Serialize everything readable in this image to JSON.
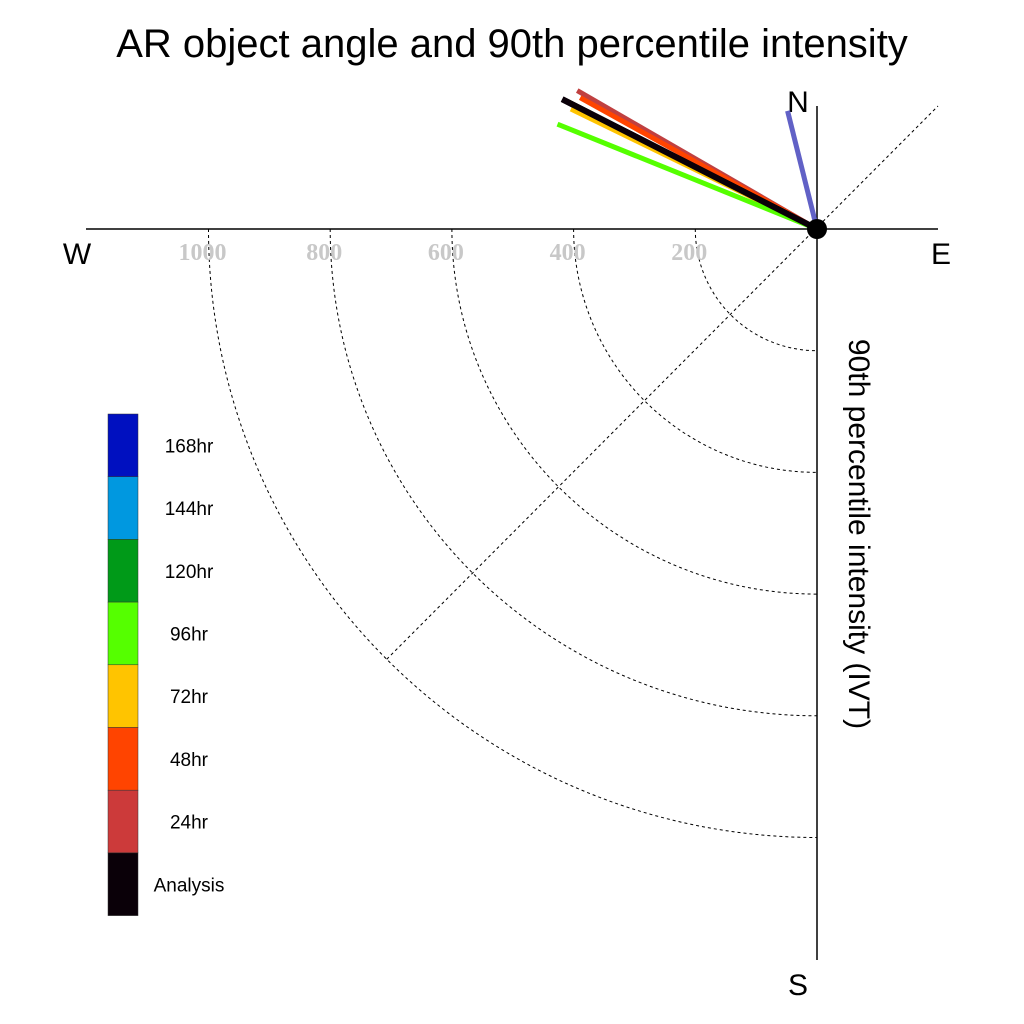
{
  "chart_data": {
    "type": "polar-vector",
    "title": "AR object angle and 90th percentile intensity",
    "radial_axis_label": "90th percentile intensity (IVT)",
    "radial_ticks": [
      200,
      400,
      600,
      800,
      1000
    ],
    "radial_max": 1200,
    "compass": {
      "north": "N",
      "south": "S",
      "east": "E",
      "west": "W"
    },
    "grid": "dashed quarter rings in SW quadrant with SW-NE diagonal",
    "legend_placement": "left",
    "legend": [
      {
        "label": "168hr",
        "color": "#0010c0"
      },
      {
        "label": "144hr",
        "color": "#0098e0"
      },
      {
        "label": "120hr",
        "color": "#009a18"
      },
      {
        "label": "96hr",
        "color": "#55ff00"
      },
      {
        "label": "72hr",
        "color": "#ffc400"
      },
      {
        "label": "48hr",
        "color": "#ff4400"
      },
      {
        "label": "24hr",
        "color": "#cc3a3a"
      },
      {
        "label": "Analysis",
        "color": "#0a0008"
      }
    ],
    "series": [
      {
        "label": "168hr",
        "color": "#5050c0",
        "angle_deg": 346,
        "intensity": 200
      },
      {
        "label": "24hr",
        "color": "#c04040",
        "angle_deg": 300,
        "intensity": 455
      },
      {
        "label": "48hr",
        "color": "#ff4400",
        "angle_deg": 299,
        "intensity": 445
      },
      {
        "label": "Analysis",
        "color": "#0a0008",
        "angle_deg": 297,
        "intensity": 470
      },
      {
        "label": "72hr",
        "color": "#ffc400",
        "angle_deg": 296,
        "intensity": 450
      },
      {
        "label": "96hr",
        "color": "#55ff00",
        "angle_deg": 292,
        "intensity": 460
      },
      {
        "label": "Analysis",
        "color": "#0a0008",
        "angle_deg": 297,
        "intensity": 470
      }
    ]
  }
}
